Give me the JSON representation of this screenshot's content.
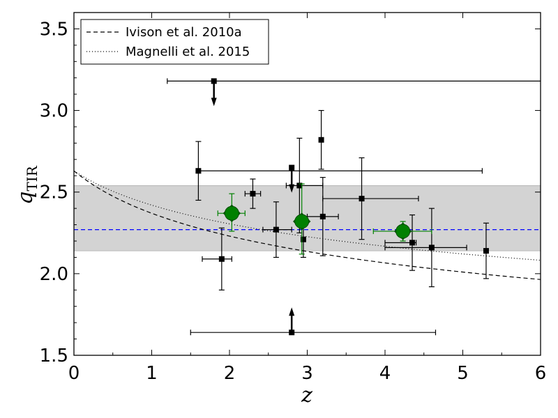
{
  "chart_data": {
    "type": "scatter",
    "xlabel": "z",
    "ylabel_main": "q",
    "ylabel_sub": "TIR",
    "xlim": [
      0,
      6
    ],
    "ylim": [
      1.5,
      3.6
    ],
    "xticks": [
      0,
      1,
      2,
      3,
      4,
      5,
      6
    ],
    "xtick_labels": [
      "0",
      "1",
      "2",
      "3",
      "4",
      "5",
      "6"
    ],
    "yticks": [
      1.5,
      2.0,
      2.5,
      3.0,
      3.5
    ],
    "ytick_labels": [
      "1.5",
      "2.0",
      "2.5",
      "3.0",
      "3.5"
    ],
    "grid": false,
    "legend_position": "top-left",
    "band": {
      "y_low": 2.14,
      "y_high": 2.54,
      "color": "#d3d3d3"
    },
    "mean_line": {
      "y": 2.27,
      "color": "#0000ff"
    },
    "curves": [
      {
        "name": "Ivison et al. 2010a",
        "style": "dashed",
        "x": [
          0,
          6
        ],
        "y_at_0": 2.63,
        "y_at_6": 1.97,
        "q0": 2.63,
        "exponent": -0.15
      },
      {
        "name": "Magnelli et al. 2015",
        "style": "dotted",
        "x": [
          0,
          6
        ],
        "q0": 2.63,
        "exponent": -0.12
      }
    ],
    "points": [
      {
        "x": 1.8,
        "y": 3.18,
        "xlo": 1.2,
        "xhi": 6.0,
        "ylo": null,
        "yhi": null,
        "limit": "upper"
      },
      {
        "x": 1.6,
        "y": 2.63,
        "xlo": 1.6,
        "xhi": 5.25,
        "ylo": 2.45,
        "yhi": 2.81
      },
      {
        "x": 1.9,
        "y": 2.09,
        "xlo": 1.65,
        "xhi": 2.03,
        "ylo": 1.9,
        "yhi": 2.28
      },
      {
        "x": 2.3,
        "y": 2.49,
        "xlo": 2.2,
        "xhi": 2.4,
        "ylo": 2.4,
        "yhi": 2.58
      },
      {
        "x": 2.6,
        "y": 2.27,
        "xlo": 2.43,
        "xhi": 2.8,
        "ylo": 2.1,
        "yhi": 2.44
      },
      {
        "x": 2.8,
        "y": 2.65,
        "xlo": null,
        "xhi": null,
        "ylo": null,
        "yhi": null,
        "limit": "upper"
      },
      {
        "x": 2.9,
        "y": 2.54,
        "xlo": 2.73,
        "xhi": 3.2,
        "ylo": 2.25,
        "yhi": 2.83
      },
      {
        "x": 2.95,
        "y": 2.21,
        "xlo": null,
        "xhi": null,
        "ylo": 2.1,
        "yhi": 2.3
      },
      {
        "x": 3.2,
        "y": 2.35,
        "xlo": 3.0,
        "xhi": 3.4,
        "ylo": 2.11,
        "yhi": 2.59
      },
      {
        "x": 3.18,
        "y": 2.82,
        "xlo": null,
        "xhi": null,
        "ylo": 2.64,
        "yhi": 3.0
      },
      {
        "x": 3.7,
        "y": 2.46,
        "xlo": 3.2,
        "xhi": 4.43,
        "ylo": 2.21,
        "yhi": 2.71
      },
      {
        "x": 4.35,
        "y": 2.19,
        "xlo": 4.0,
        "xhi": 4.4,
        "ylo": 2.02,
        "yhi": 2.36
      },
      {
        "x": 4.6,
        "y": 2.16,
        "xlo": 4.0,
        "xhi": 5.05,
        "ylo": 1.92,
        "yhi": 2.4
      },
      {
        "x": 5.3,
        "y": 2.14,
        "xlo": null,
        "xhi": null,
        "ylo": 1.97,
        "yhi": 2.31
      },
      {
        "x": 2.8,
        "y": 1.64,
        "xlo": 1.5,
        "xhi": 4.65,
        "ylo": null,
        "yhi": null,
        "limit": "lower"
      }
    ],
    "stacked_points": [
      {
        "x": 2.03,
        "y": 2.37,
        "xlo": 1.85,
        "xhi": 2.2,
        "ylo": 2.26,
        "yhi": 2.49
      },
      {
        "x": 2.93,
        "y": 2.32,
        "xlo": 2.85,
        "xhi": 3.0,
        "ylo": 2.12,
        "yhi": 2.55
      },
      {
        "x": 4.23,
        "y": 2.26,
        "xlo": 3.85,
        "xhi": 4.6,
        "ylo": 2.2,
        "yhi": 2.32
      }
    ],
    "colors": {
      "points": "#000000",
      "stacked": "#008000",
      "curves": "#000000"
    }
  }
}
